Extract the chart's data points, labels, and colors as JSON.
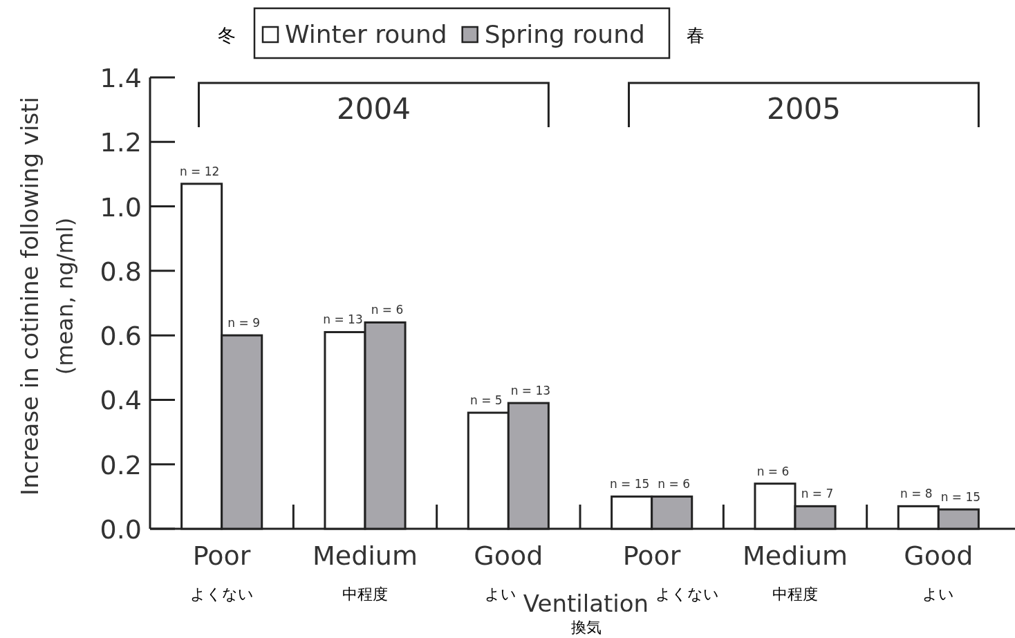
{
  "chart_data": {
    "type": "bar",
    "categories": [
      "Poor\nよくない",
      "Medium\n中程度",
      "Good\nよい",
      "Poor\nよくない",
      "Medium\n中程度",
      "Good\nよい"
    ],
    "xlabel": "Ventilation\n換気",
    "ylabel": "Increase in cotinine following visti\n(mean, ng/ml)",
    "series": [
      {
        "name": "Winter round",
        "color": "#ffffff",
        "values": [
          1.07,
          0.61,
          0.36,
          0.1,
          0.14,
          0.07
        ]
      },
      {
        "name": "Spring round",
        "color": "#a7a6ab",
        "values": [
          0.6,
          0.64,
          0.39,
          0.1,
          0.07,
          0.06
        ]
      }
    ],
    "ylim": [
      0,
      1.4
    ],
    "yticks": [
      {
        "value": 0,
        "label": "0.0"
      },
      0.2,
      0.4,
      0.6,
      0.8,
      {
        "value": 1,
        "label": "1.0"
      },
      1.2,
      1.4
    ],
    "annotations": [
      "冬",
      "春",
      "2004",
      "2005",
      "n = 12",
      "n = 9",
      "n = 13",
      "n = 6",
      "n = 5",
      "n = 13",
      "n = 15",
      "n = 6",
      "n = 6",
      "n = 7",
      "n = 8",
      "n = 15"
    ],
    "legend": "top",
    "grid": false
  }
}
